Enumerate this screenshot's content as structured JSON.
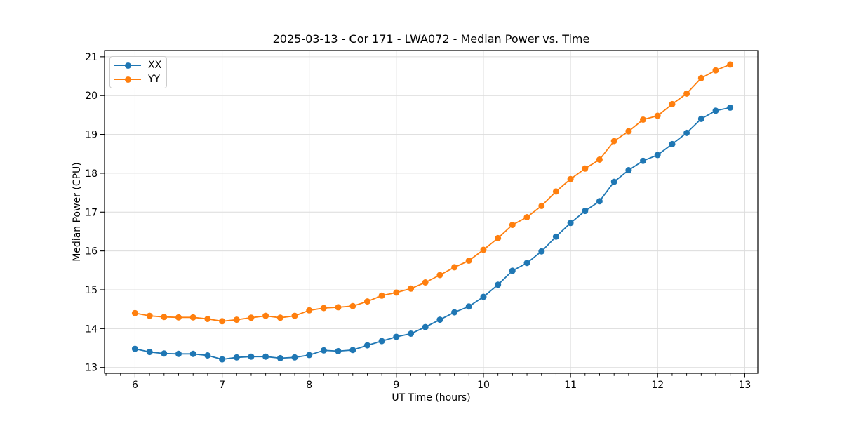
{
  "chart_data": {
    "type": "line",
    "title": "2025-03-13 - Cor 171 - LWA072 - Median Power vs. Time",
    "xlabel": "UT Time (hours)",
    "ylabel": "Median Power (CPU)",
    "xlim": [
      5.65,
      13.15
    ],
    "ylim": [
      12.85,
      21.16
    ],
    "x_ticks": [
      6,
      7,
      8,
      9,
      10,
      11,
      12,
      13
    ],
    "y_ticks": [
      13,
      14,
      15,
      16,
      17,
      18,
      19,
      20,
      21
    ],
    "x_minor_step_hours": 0.16667,
    "grid": true,
    "grid_color": "#dcdcdc",
    "legend_position": "upper-left",
    "x": [
      6.0,
      6.167,
      6.333,
      6.5,
      6.667,
      6.833,
      7.0,
      7.167,
      7.333,
      7.5,
      7.667,
      7.833,
      8.0,
      8.167,
      8.333,
      8.5,
      8.667,
      8.833,
      9.0,
      9.167,
      9.333,
      9.5,
      9.667,
      9.833,
      10.0,
      10.167,
      10.333,
      10.5,
      10.667,
      10.833,
      11.0,
      11.167,
      11.333,
      11.5,
      11.667,
      11.833,
      12.0,
      12.167,
      12.333,
      12.5,
      12.667,
      12.833
    ],
    "series": [
      {
        "name": "XX",
        "color": "#1f77b4",
        "values": [
          13.48,
          13.4,
          13.36,
          13.35,
          13.35,
          13.31,
          13.21,
          13.26,
          13.28,
          13.28,
          13.24,
          13.26,
          13.32,
          13.44,
          13.42,
          13.45,
          13.57,
          13.68,
          13.79,
          13.87,
          14.04,
          14.23,
          14.42,
          14.57,
          14.82,
          15.13,
          15.49,
          15.69,
          15.99,
          16.37,
          16.72,
          17.03,
          17.28,
          17.78,
          18.08,
          18.32,
          18.47,
          18.75,
          19.04,
          19.4,
          19.61,
          19.69
        ]
      },
      {
        "name": "YY",
        "color": "#ff7f0e",
        "values": [
          14.4,
          14.33,
          14.3,
          14.29,
          14.29,
          14.25,
          14.19,
          14.23,
          14.28,
          14.33,
          14.28,
          14.33,
          14.47,
          14.53,
          14.55,
          14.58,
          14.7,
          14.85,
          14.93,
          15.03,
          15.19,
          15.38,
          15.58,
          15.75,
          16.03,
          16.33,
          16.67,
          16.87,
          17.16,
          17.53,
          17.85,
          18.12,
          18.35,
          18.83,
          19.08,
          19.38,
          19.48,
          19.78,
          20.05,
          20.45,
          20.65,
          20.8
        ]
      }
    ]
  }
}
